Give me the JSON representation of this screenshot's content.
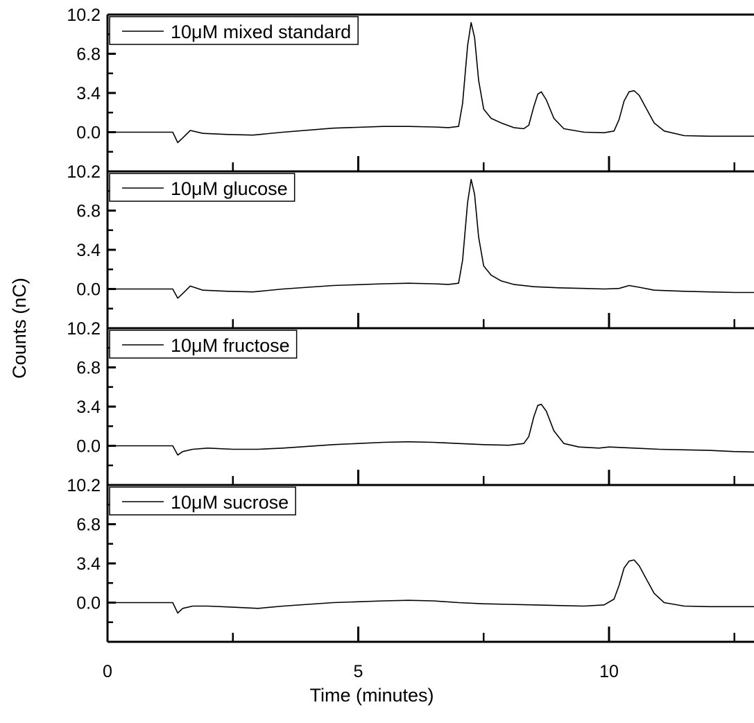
{
  "chart_data": {
    "type": "line",
    "layout": "stacked-panels",
    "xlabel": "Time (minutes)",
    "ylabel": "Counts (nC)",
    "xlim": [
      0,
      13
    ],
    "ylim": [
      -3.4,
      10.2
    ],
    "x_ticks": [
      {
        "value": 0,
        "label": "0"
      },
      {
        "value": 5,
        "label": "5"
      },
      {
        "value": 10,
        "label": "10"
      }
    ],
    "y_ticks": [
      {
        "value": 10.2,
        "label": "10.2"
      },
      {
        "value": 6.8,
        "label": "6.8"
      },
      {
        "value": 3.4,
        "label": "3.4"
      },
      {
        "value": 0.0,
        "label": "0.0"
      }
    ],
    "legend_position": "top-left",
    "panels": [
      {
        "legend": "10μM mixed standard",
        "x": [
          0,
          1.3,
          1.4,
          1.5,
          1.65,
          1.9,
          2.4,
          2.9,
          3.5,
          4.5,
          5.5,
          6.0,
          6.5,
          6.8,
          7.0,
          7.08,
          7.18,
          7.25,
          7.32,
          7.4,
          7.5,
          7.65,
          7.85,
          8.1,
          8.3,
          8.4,
          8.5,
          8.58,
          8.65,
          8.75,
          8.9,
          9.1,
          9.5,
          9.9,
          10.1,
          10.2,
          10.3,
          10.4,
          10.5,
          10.6,
          10.75,
          10.9,
          11.1,
          11.5,
          12.0,
          12.5,
          13.0
        ],
        "values": [
          0.0,
          0.0,
          -0.9,
          -0.5,
          0.15,
          -0.1,
          -0.2,
          -0.25,
          0.0,
          0.35,
          0.5,
          0.5,
          0.45,
          0.4,
          0.5,
          2.5,
          7.5,
          9.5,
          8.2,
          4.5,
          2.0,
          1.2,
          0.8,
          0.4,
          0.3,
          0.6,
          2.2,
          3.3,
          3.5,
          2.8,
          1.2,
          0.3,
          0.0,
          -0.05,
          0.1,
          1.1,
          2.7,
          3.5,
          3.6,
          3.2,
          2.0,
          0.8,
          0.1,
          -0.3,
          -0.35,
          -0.35,
          -0.35
        ]
      },
      {
        "legend": "10μM glucose",
        "x": [
          0,
          1.3,
          1.4,
          1.5,
          1.65,
          1.9,
          2.4,
          2.9,
          3.5,
          4.5,
          5.5,
          6.0,
          6.5,
          6.8,
          7.0,
          7.08,
          7.18,
          7.25,
          7.32,
          7.4,
          7.5,
          7.65,
          7.85,
          8.1,
          8.5,
          9.0,
          9.5,
          9.9,
          10.2,
          10.4,
          10.6,
          10.9,
          11.5,
          12.0,
          12.5,
          13.0
        ],
        "values": [
          0.0,
          0.0,
          -0.8,
          -0.4,
          0.25,
          -0.1,
          -0.2,
          -0.25,
          0.0,
          0.3,
          0.45,
          0.5,
          0.45,
          0.4,
          0.5,
          2.5,
          7.5,
          9.5,
          8.2,
          4.5,
          2.0,
          1.2,
          0.7,
          0.4,
          0.2,
          0.1,
          0.05,
          0.0,
          0.05,
          0.3,
          0.15,
          -0.1,
          -0.2,
          -0.25,
          -0.3,
          -0.3
        ]
      },
      {
        "legend": "10μM fructose",
        "x": [
          0,
          1.3,
          1.4,
          1.5,
          1.7,
          2.0,
          2.5,
          3.0,
          3.5,
          4.5,
          5.5,
          6.0,
          6.5,
          7.0,
          7.5,
          8.0,
          8.3,
          8.4,
          8.5,
          8.58,
          8.65,
          8.75,
          8.9,
          9.1,
          9.4,
          9.8,
          10.0,
          10.5,
          11.0,
          11.5,
          12.0,
          12.5,
          13.0
        ],
        "values": [
          0.0,
          0.0,
          -0.8,
          -0.5,
          -0.3,
          -0.2,
          -0.3,
          -0.3,
          -0.2,
          0.1,
          0.3,
          0.35,
          0.3,
          0.2,
          0.1,
          0.05,
          0.2,
          0.8,
          2.5,
          3.5,
          3.6,
          3.0,
          1.3,
          0.2,
          -0.1,
          -0.2,
          -0.1,
          -0.2,
          -0.3,
          -0.35,
          -0.4,
          -0.5,
          -0.55
        ]
      },
      {
        "legend": "10μM sucrose",
        "x": [
          0,
          1.3,
          1.4,
          1.5,
          1.7,
          2.0,
          2.5,
          3.0,
          3.5,
          4.5,
          5.5,
          6.0,
          6.5,
          7.0,
          7.5,
          8.0,
          8.5,
          9.0,
          9.5,
          9.9,
          10.1,
          10.2,
          10.3,
          10.4,
          10.5,
          10.6,
          10.75,
          10.9,
          11.1,
          11.5,
          12.0,
          12.5,
          13.0
        ],
        "values": [
          0.0,
          0.0,
          -0.9,
          -0.5,
          -0.3,
          -0.3,
          -0.4,
          -0.5,
          -0.3,
          0.0,
          0.15,
          0.2,
          0.15,
          0.0,
          -0.1,
          -0.15,
          -0.2,
          -0.25,
          -0.3,
          -0.2,
          0.3,
          1.5,
          3.0,
          3.6,
          3.7,
          3.2,
          2.0,
          0.8,
          0.0,
          -0.3,
          -0.35,
          -0.35,
          -0.35
        ]
      }
    ]
  }
}
